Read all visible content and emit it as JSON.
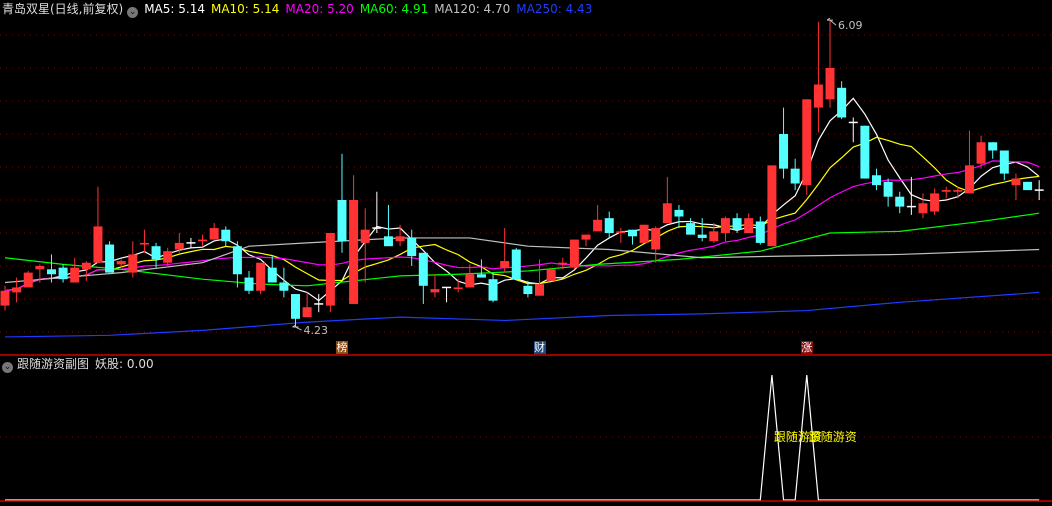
{
  "header": {
    "title": "青岛双星(日线,前复权)",
    "ma": [
      {
        "label": "MA5: 5.14",
        "color": "#ffffff"
      },
      {
        "label": "MA10: 5.14",
        "color": "#ffff00"
      },
      {
        "label": "MA20: 5.20",
        "color": "#ff00ff"
      },
      {
        "label": "MA60: 4.91",
        "color": "#00ff00"
      },
      {
        "label": "MA120: 4.70",
        "color": "#c0c0c0"
      },
      {
        "label": "MA250: 4.43",
        "color": "#1e3cff"
      }
    ]
  },
  "sub_header": {
    "title": "跟随游资副图",
    "value_label": "妖股: 0.00"
  },
  "markers": [
    {
      "text": "榜",
      "candle": 29,
      "color": "#8b4a10"
    },
    {
      "text": "财",
      "candle": 46,
      "color": "#1a4a80"
    },
    {
      "text": "涨",
      "candle": 69,
      "color": "#8b0a0a"
    }
  ],
  "colors": {
    "up": "#ff3333",
    "down": "#54ffff",
    "flat": "#ffffff",
    "grid": "#8b0000",
    "separator": "#cc0000"
  },
  "chart_data": [
    {
      "type": "candlestick",
      "ylim": [
        4.2,
        6.1
      ],
      "grid_step": 0.2,
      "grid": true,
      "annotations": [
        {
          "text": "6.09",
          "candle": 71,
          "price": 6.09
        },
        {
          "text": "4.23",
          "candle": 25,
          "price": 4.23
        }
      ],
      "ohlc": [
        [
          4.36,
          4.48,
          4.33,
          4.45
        ],
        [
          4.44,
          4.53,
          4.38,
          4.47
        ],
        [
          4.47,
          4.57,
          4.47,
          4.56
        ],
        [
          4.58,
          4.61,
          4.5,
          4.6
        ],
        [
          4.58,
          4.67,
          4.5,
          4.55
        ],
        [
          4.59,
          4.61,
          4.5,
          4.52
        ],
        [
          4.5,
          4.65,
          4.5,
          4.59
        ],
        [
          4.58,
          4.63,
          4.51,
          4.62
        ],
        [
          4.62,
          5.08,
          4.62,
          4.84
        ],
        [
          4.73,
          4.75,
          4.56,
          4.56
        ],
        [
          4.61,
          4.64,
          4.59,
          4.63
        ],
        [
          4.56,
          4.75,
          4.53,
          4.67
        ],
        [
          4.73,
          4.82,
          4.68,
          4.74
        ],
        [
          4.72,
          4.74,
          4.59,
          4.64
        ],
        [
          4.62,
          4.71,
          4.59,
          4.69
        ],
        [
          4.7,
          4.8,
          4.68,
          4.74
        ],
        [
          4.74,
          4.77,
          4.71,
          4.74
        ],
        [
          4.75,
          4.79,
          4.72,
          4.76
        ],
        [
          4.76,
          4.86,
          4.76,
          4.83
        ],
        [
          4.82,
          4.84,
          4.72,
          4.75
        ],
        [
          4.72,
          4.75,
          4.47,
          4.55
        ],
        [
          4.53,
          4.57,
          4.43,
          4.45
        ],
        [
          4.45,
          4.62,
          4.43,
          4.62
        ],
        [
          4.59,
          4.66,
          4.5,
          4.5
        ],
        [
          4.5,
          4.59,
          4.41,
          4.45
        ],
        [
          4.43,
          4.43,
          4.23,
          4.28
        ],
        [
          4.29,
          4.44,
          4.29,
          4.35
        ],
        [
          4.37,
          4.43,
          4.32,
          4.37
        ],
        [
          4.36,
          4.8,
          4.32,
          4.8
        ],
        [
          5.0,
          5.28,
          4.68,
          4.75
        ],
        [
          4.37,
          5.15,
          4.37,
          5.0
        ],
        [
          4.74,
          4.95,
          4.5,
          4.82
        ],
        [
          4.83,
          5.05,
          4.8,
          4.83
        ],
        [
          4.78,
          4.97,
          4.72,
          4.72
        ],
        [
          4.75,
          4.85,
          4.72,
          4.78
        ],
        [
          4.77,
          4.82,
          4.6,
          4.66
        ],
        [
          4.68,
          4.68,
          4.37,
          4.48
        ],
        [
          4.44,
          4.55,
          4.41,
          4.46
        ],
        [
          4.47,
          4.47,
          4.38,
          4.47
        ],
        [
          4.46,
          4.52,
          4.44,
          4.47
        ],
        [
          4.47,
          4.61,
          4.47,
          4.55
        ],
        [
          4.55,
          4.64,
          4.53,
          4.53
        ],
        [
          4.52,
          4.56,
          4.38,
          4.39
        ],
        [
          4.59,
          4.83,
          4.56,
          4.63
        ],
        [
          4.7,
          4.71,
          4.52,
          4.52
        ],
        [
          4.48,
          4.51,
          4.41,
          4.43
        ],
        [
          4.42,
          4.64,
          4.42,
          4.49
        ],
        [
          4.51,
          4.59,
          4.51,
          4.58
        ],
        [
          4.61,
          4.65,
          4.58,
          4.62
        ],
        [
          4.59,
          4.76,
          4.58,
          4.76
        ],
        [
          4.76,
          4.79,
          4.72,
          4.79
        ],
        [
          4.81,
          4.97,
          4.81,
          4.88
        ],
        [
          4.89,
          4.93,
          4.77,
          4.8
        ],
        [
          4.8,
          4.83,
          4.74,
          4.81
        ],
        [
          4.82,
          4.82,
          4.73,
          4.78
        ],
        [
          4.74,
          4.85,
          4.74,
          4.85
        ],
        [
          4.7,
          4.84,
          4.62,
          4.83
        ],
        [
          4.86,
          5.14,
          4.86,
          4.98
        ],
        [
          4.94,
          4.97,
          4.83,
          4.9
        ],
        [
          4.86,
          4.89,
          4.79,
          4.79
        ],
        [
          4.79,
          4.89,
          4.75,
          4.77
        ],
        [
          4.75,
          4.86,
          4.74,
          4.81
        ],
        [
          4.8,
          4.9,
          4.75,
          4.89
        ],
        [
          4.89,
          4.92,
          4.8,
          4.82
        ],
        [
          4.8,
          4.92,
          4.8,
          4.89
        ],
        [
          4.87,
          4.9,
          4.73,
          4.74
        ],
        [
          4.72,
          5.21,
          4.72,
          5.21
        ],
        [
          5.4,
          5.56,
          5.13,
          5.19
        ],
        [
          5.19,
          5.25,
          5.06,
          5.1
        ],
        [
          5.09,
          5.61,
          5.03,
          5.61
        ],
        [
          5.56,
          6.08,
          5.41,
          5.7
        ],
        [
          5.61,
          6.09,
          5.56,
          5.8
        ],
        [
          5.68,
          5.72,
          5.49,
          5.5
        ],
        [
          5.47,
          5.5,
          5.35,
          5.47
        ],
        [
          5.45,
          5.45,
          5.13,
          5.13
        ],
        [
          5.15,
          5.19,
          5.06,
          5.09
        ],
        [
          5.11,
          5.13,
          4.96,
          5.02
        ],
        [
          5.02,
          5.05,
          4.92,
          4.96
        ],
        [
          4.96,
          5.14,
          4.91,
          4.96
        ],
        [
          4.92,
          5.04,
          4.89,
          4.98
        ],
        [
          4.93,
          5.07,
          4.91,
          5.04
        ],
        [
          5.05,
          5.08,
          5.01,
          5.06
        ],
        [
          5.05,
          5.08,
          5.01,
          5.06
        ],
        [
          5.04,
          5.42,
          5.04,
          5.21
        ],
        [
          5.22,
          5.39,
          5.19,
          5.35
        ],
        [
          5.35,
          5.35,
          5.25,
          5.3
        ],
        [
          5.3,
          5.3,
          5.12,
          5.16
        ],
        [
          5.09,
          5.16,
          5.0,
          5.13
        ],
        [
          5.11,
          5.11,
          5.06,
          5.06
        ],
        [
          5.06,
          5.12,
          5.0,
          5.06
        ]
      ],
      "moving_averages": [
        {
          "name": "MA5",
          "period": 5,
          "color": "#ffffff"
        },
        {
          "name": "MA10",
          "period": 10,
          "color": "#ffff00"
        },
        {
          "name": "MA20",
          "period": 20,
          "color": "#ff00ff"
        },
        {
          "name": "MA60",
          "color": "#00ff00",
          "points": [
            [
              0,
              4.65
            ],
            [
              5,
              4.61
            ],
            [
              10,
              4.58
            ],
            [
              17,
              4.52
            ],
            [
              22,
              4.49
            ],
            [
              26,
              4.48
            ],
            [
              30,
              4.51
            ],
            [
              34,
              4.54
            ],
            [
              39,
              4.55
            ],
            [
              45,
              4.57
            ],
            [
              51,
              4.61
            ],
            [
              58,
              4.64
            ],
            [
              65,
              4.69
            ],
            [
              71,
              4.8
            ],
            [
              77,
              4.81
            ],
            [
              84,
              4.87
            ],
            [
              89,
              4.92
            ]
          ]
        },
        {
          "name": "MA120",
          "color": "#c0c0c0",
          "points": [
            [
              0,
              4.5
            ],
            [
              5,
              4.53
            ],
            [
              10,
              4.56
            ],
            [
              17,
              4.62
            ],
            [
              21,
              4.72
            ],
            [
              26,
              4.74
            ],
            [
              34,
              4.77
            ],
            [
              40,
              4.77
            ],
            [
              45,
              4.72
            ],
            [
              52,
              4.7
            ],
            [
              60,
              4.65
            ],
            [
              67,
              4.66
            ],
            [
              77,
              4.67
            ],
            [
              89,
              4.7
            ]
          ]
        },
        {
          "name": "MA250",
          "color": "#1e3cff",
          "points": [
            [
              0,
              4.17
            ],
            [
              9,
              4.18
            ],
            [
              17,
              4.21
            ],
            [
              26,
              4.26
            ],
            [
              34,
              4.29
            ],
            [
              43,
              4.27
            ],
            [
              52,
              4.3
            ],
            [
              60,
              4.31
            ],
            [
              69,
              4.33
            ],
            [
              77,
              4.38
            ],
            [
              89,
              4.44
            ]
          ]
        }
      ]
    },
    {
      "type": "line",
      "name": "跟随游资",
      "values_nonzero": [
        [
          66,
          1
        ],
        [
          69,
          1
        ]
      ],
      "length": 90,
      "signal_labels": [
        {
          "text": "跟随游资",
          "candle": 66
        },
        {
          "text": "跟随游资",
          "candle": 69
        }
      ],
      "label_color": "#ffff00"
    }
  ]
}
